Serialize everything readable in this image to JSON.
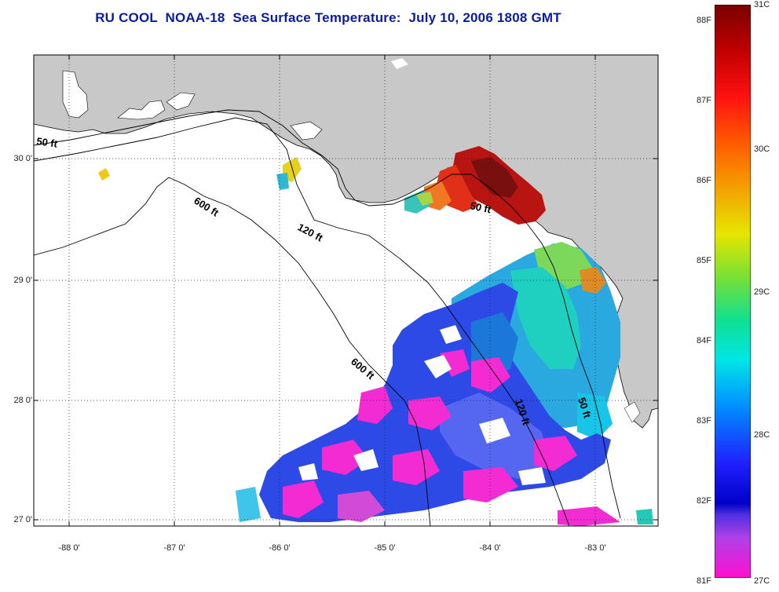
{
  "title": "RU COOL  NOAA-18  Sea Surface Temperature:  July 10, 2006 1808 GMT",
  "colors": {
    "land": "#c8c8c8",
    "ocean": "#ffffff",
    "title": "#0b1d9c",
    "grid": "#222222"
  },
  "axes": {
    "lat_labels": [
      "30 0'",
      "29 0'",
      "28 0'",
      "27 0'"
    ],
    "lon_labels": [
      "-88 0'",
      "-87 0'",
      "-86 0'",
      "-85 0'",
      "-84 0'",
      "-83 0'"
    ]
  },
  "contours": {
    "label_50_west": "50 ft",
    "label_600_north": "600 ft",
    "label_120_north": "120 ft",
    "label_50_bigbend": "50 ft",
    "label_600_south": "600 ft",
    "label_120_south": "120 ft",
    "label_50_south": "50 ft"
  },
  "colorbar": {
    "fahrenheit_labels": [
      "88F",
      "87F",
      "86F",
      "85F",
      "84F",
      "83F",
      "82F",
      "81F"
    ],
    "celsius_labels": [
      "31C",
      "30C",
      "29C",
      "28C",
      "27C"
    ],
    "range_f": [
      81,
      88
    ],
    "range_c": [
      27,
      31
    ]
  }
}
